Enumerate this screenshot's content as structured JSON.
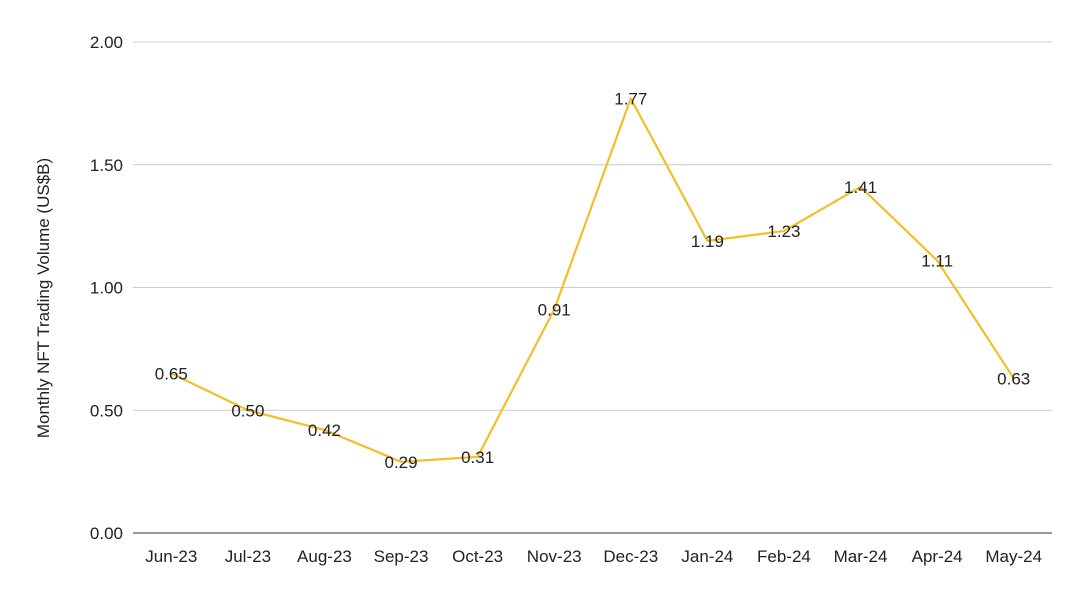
{
  "chart_data": {
    "type": "line",
    "title": "",
    "xlabel": "",
    "ylabel": "Monthly NFT Trading Volume (US$B)",
    "categories": [
      "Jun-23",
      "Jul-23",
      "Aug-23",
      "Sep-23",
      "Oct-23",
      "Nov-23",
      "Dec-23",
      "Jan-24",
      "Feb-24",
      "Mar-24",
      "Apr-24",
      "May-24"
    ],
    "series": [
      {
        "values": [
          0.65,
          0.5,
          0.42,
          0.29,
          0.31,
          0.91,
          1.77,
          1.19,
          1.23,
          1.41,
          1.11,
          0.63
        ],
        "data_labels": [
          "0.65",
          "0.50",
          "0.42",
          "0.29",
          "0.31",
          "0.91",
          "1.77",
          "1.19",
          "1.23",
          "1.41",
          "1.11",
          "0.63"
        ],
        "color": "#f1bf2a"
      }
    ],
    "ylim": [
      0,
      2
    ],
    "yticks": [
      0,
      0.5,
      1,
      1.5,
      2
    ],
    "ytick_labels": [
      "0.00",
      "0.50",
      "1.00",
      "1.50",
      "2.00"
    ],
    "grid": true,
    "legend": "none"
  }
}
